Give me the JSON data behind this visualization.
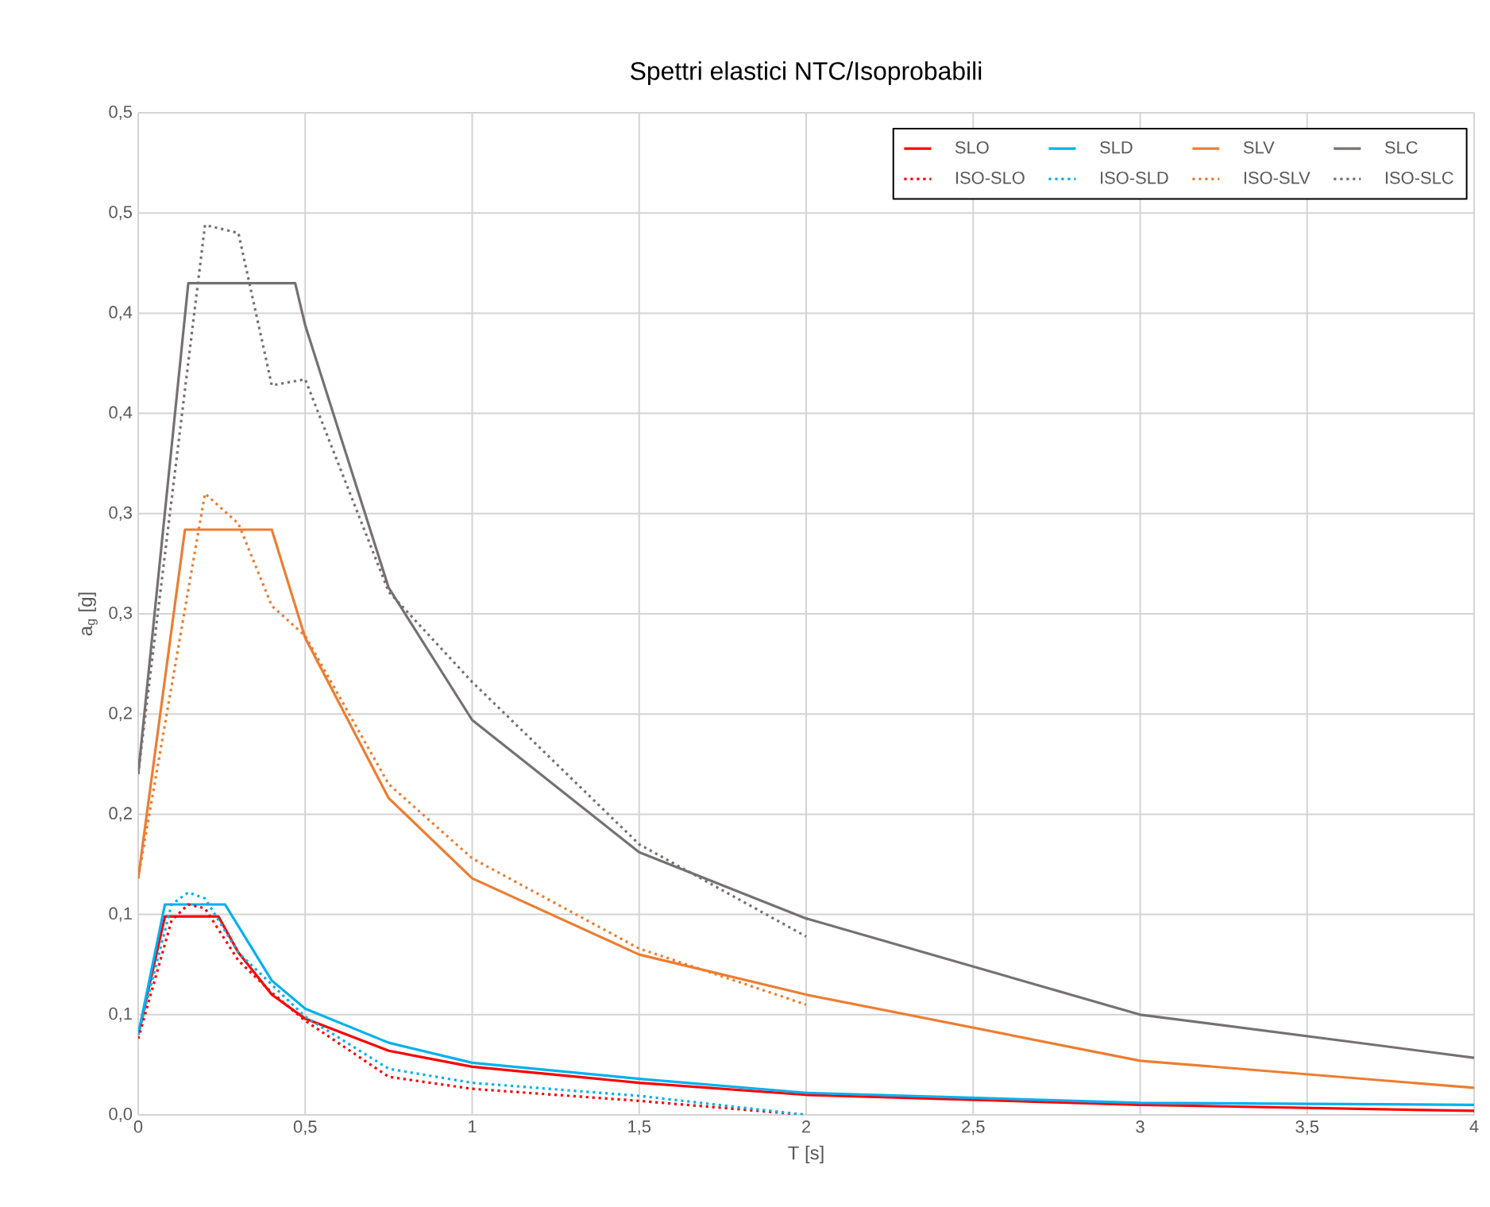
{
  "chart_data": {
    "type": "line",
    "title": "Spettri elastici NTC/Isoprobabili",
    "xlabel": "T [s]",
    "ylabel": "a$_{g}$ [g]",
    "xlim": [
      0,
      4
    ],
    "ylim": [
      0,
      0.5
    ],
    "xticks": [
      0,
      {
        "value": 0.5,
        "label": "0,5"
      },
      1,
      {
        "value": 1.5,
        "label": "1,5"
      },
      2,
      {
        "value": 2.5,
        "label": "2,5"
      },
      3,
      {
        "value": 3.5,
        "label": "3,5"
      },
      4
    ],
    "yticks": [
      {
        "value": 0,
        "label": "0,0"
      },
      {
        "value": 0.05,
        "label": "0,1"
      },
      {
        "value": 0.1,
        "label": "0,1"
      },
      {
        "value": 0.15,
        "label": "0,2"
      },
      {
        "value": 0.2,
        "label": "0,2"
      },
      {
        "value": 0.25,
        "label": "0,3"
      },
      {
        "value": 0.3,
        "label": "0,3"
      },
      {
        "value": 0.35,
        "label": "0,4"
      },
      {
        "value": 0.4,
        "label": "0,4"
      },
      {
        "value": 0.45,
        "label": "0,5"
      },
      {
        "value": 0.5,
        "label": "0,5"
      }
    ],
    "grid": true,
    "legend": "top right",
    "marker": "none",
    "series": [
      {
        "name": "SLO",
        "color": "#ff0000",
        "line_style": "solid",
        "x": [
          0,
          0.08,
          0.24,
          0.3,
          0.4,
          0.5,
          0.75,
          1,
          1.5,
          2,
          3,
          4
        ],
        "values": [
          0.04,
          0.099,
          0.099,
          0.081,
          0.06,
          0.048,
          0.032,
          0.024,
          0.016,
          0.01,
          0.005,
          0.002
        ]
      },
      {
        "name": "SLD",
        "color": "#00b0f0",
        "line_style": "solid",
        "x": [
          0,
          0.08,
          0.26,
          0.4,
          0.5,
          0.75,
          1,
          1.5,
          2,
          3,
          4
        ],
        "values": [
          0.04,
          0.105,
          0.105,
          0.067,
          0.053,
          0.036,
          0.026,
          0.018,
          0.011,
          0.006,
          0.005
        ]
      },
      {
        "name": "SLV",
        "color": "#ed7d31",
        "line_style": "solid",
        "x": [
          0,
          0.14,
          0.4,
          0.5,
          0.75,
          1,
          1.5,
          2,
          3,
          4
        ],
        "values": [
          0.118,
          0.292,
          0.292,
          0.238,
          0.158,
          0.118,
          0.08,
          0.06,
          0.027,
          0.0135
        ]
      },
      {
        "name": "SLC",
        "color": "#767171",
        "line_style": "solid",
        "x": [
          0,
          0.15,
          0.47,
          0.5,
          0.75,
          1,
          1.5,
          2,
          3,
          4
        ],
        "values": [
          0.17,
          0.415,
          0.415,
          0.394,
          0.263,
          0.197,
          0.131,
          0.098,
          0.05,
          0.0285
        ]
      },
      {
        "name": "ISO-SLO",
        "color": "#ff0000",
        "line_style": "dotted",
        "x": [
          0,
          0.1,
          0.15,
          0.2,
          0.3,
          0.4,
          0.5,
          0.75,
          1,
          1.5,
          2
        ],
        "values": [
          0.038,
          0.097,
          0.105,
          0.103,
          0.077,
          0.061,
          0.047,
          0.019,
          0.013,
          0.007,
          0
        ]
      },
      {
        "name": "ISO-SLD",
        "color": "#00b0f0",
        "line_style": "dotted",
        "x": [
          0,
          0.1,
          0.15,
          0.2,
          0.3,
          0.4,
          0.5,
          0.75,
          1,
          1.5,
          2
        ],
        "values": [
          0.04,
          0.105,
          0.111,
          0.108,
          0.081,
          0.065,
          0.049,
          0.023,
          0.016,
          0.0095,
          0
        ]
      },
      {
        "name": "ISO-SLV",
        "color": "#ed7d31",
        "line_style": "dotted",
        "x": [
          0,
          0.2,
          0.3,
          0.4,
          0.5,
          0.75,
          1,
          1.5,
          2
        ],
        "values": [
          0.118,
          0.31,
          0.295,
          0.254,
          0.239,
          0.165,
          0.128,
          0.083,
          0.055
        ]
      },
      {
        "name": "ISO-SLC",
        "color": "#767171",
        "line_style": "dotted",
        "x": [
          0,
          0.2,
          0.3,
          0.4,
          0.5,
          0.75,
          1,
          1.5,
          2
        ],
        "values": [
          0.17,
          0.444,
          0.44,
          0.364,
          0.367,
          0.261,
          0.216,
          0.135,
          0.089
        ]
      }
    ]
  }
}
